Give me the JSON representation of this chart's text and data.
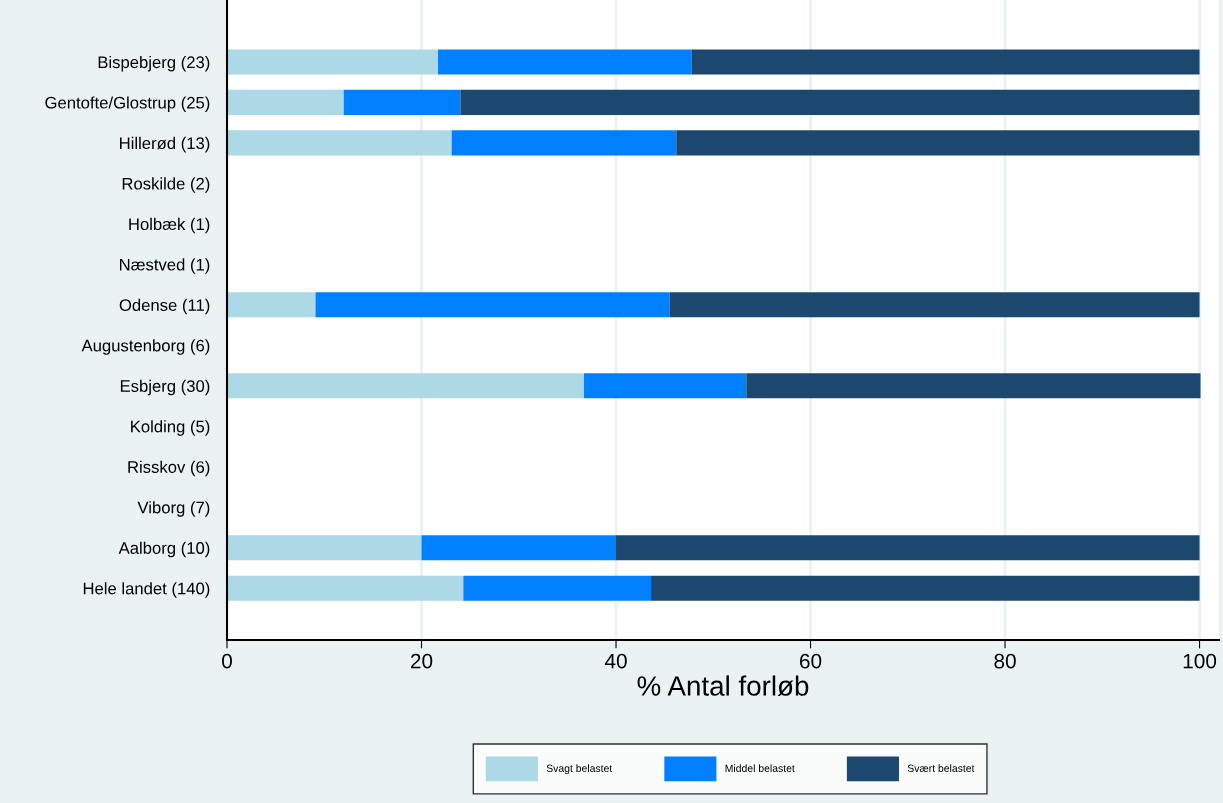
{
  "chart_data": {
    "type": "bar",
    "orientation": "horizontal",
    "stacked": true,
    "xlabel": "% Antal forløb",
    "categories": [
      "Bispebjerg (23)",
      "Gentofte/Glostrup (25)",
      "Hillerød (13)",
      "Roskilde (2)",
      "Holbæk (1)",
      "Næstved (1)",
      "Odense (11)",
      "Augustenborg (6)",
      "Esbjerg (30)",
      "Kolding (5)",
      "Risskov (6)",
      "Viborg (7)",
      "Aalborg (10)",
      "Hele landet (140)"
    ],
    "series": [
      {
        "name": "Svagt belastet",
        "color": "#add8e6",
        "values": [
          21.7,
          12,
          23.1,
          null,
          null,
          null,
          9.1,
          null,
          36.7,
          null,
          null,
          null,
          20,
          24.3
        ]
      },
      {
        "name": "Middel belastet",
        "color": "#0080ff",
        "values": [
          26.1,
          12,
          23.1,
          null,
          null,
          null,
          36.4,
          null,
          16.7,
          null,
          null,
          null,
          20,
          19.3
        ]
      },
      {
        "name": "Svært belastet",
        "color": "#1c476e",
        "values": [
          52.2,
          76,
          53.8,
          null,
          null,
          null,
          54.5,
          null,
          46.7,
          null,
          null,
          null,
          60,
          56.4
        ]
      }
    ],
    "xlim": [
      0,
      102
    ],
    "xticks": [
      0,
      20,
      40,
      60,
      80,
      100
    ],
    "grid": "x",
    "legend": "bottom"
  }
}
